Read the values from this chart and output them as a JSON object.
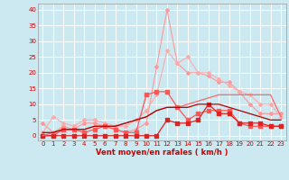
{
  "xlabel": "Vent moyen/en rafales ( km/h )",
  "bg_color": "#cce8f0",
  "grid_color": "#ffffff",
  "x_ticks": [
    0,
    1,
    2,
    3,
    4,
    5,
    6,
    7,
    8,
    9,
    10,
    11,
    12,
    13,
    14,
    15,
    16,
    17,
    18,
    19,
    20,
    21,
    22,
    23
  ],
  "y_ticks": [
    0,
    5,
    10,
    15,
    20,
    25,
    30,
    35,
    40
  ],
  "ylim": [
    -1.5,
    42
  ],
  "xlim": [
    -0.5,
    23.5
  ],
  "series": [
    {
      "color": "#ff9999",
      "linewidth": 0.8,
      "marker": "D",
      "markersize": 2.0,
      "x": [
        0,
        1,
        2,
        3,
        4,
        5,
        6,
        7,
        8,
        9,
        10,
        11,
        12,
        13,
        14,
        15,
        16,
        17,
        18,
        19,
        20,
        21,
        22,
        23
      ],
      "y": [
        4,
        1,
        3,
        2,
        4,
        4,
        3,
        2,
        1,
        2,
        4,
        22,
        40,
        23,
        20,
        20,
        19,
        17,
        17,
        14,
        10,
        7,
        7,
        7
      ]
    },
    {
      "color": "#ffaaaa",
      "linewidth": 0.8,
      "marker": "D",
      "markersize": 2.0,
      "x": [
        0,
        1,
        2,
        3,
        4,
        5,
        6,
        7,
        8,
        9,
        10,
        11,
        12,
        13,
        14,
        15,
        16,
        17,
        18,
        19,
        20,
        21,
        22,
        23
      ],
      "y": [
        1,
        6,
        4,
        3,
        5,
        5,
        4,
        3,
        3,
        5,
        8,
        13,
        27,
        23,
        25,
        20,
        20,
        18,
        16,
        14,
        13,
        10,
        10,
        6
      ]
    },
    {
      "color": "#ff5555",
      "linewidth": 0.9,
      "marker": "s",
      "markersize": 2.2,
      "x": [
        0,
        1,
        2,
        3,
        4,
        5,
        6,
        7,
        8,
        9,
        10,
        11,
        12,
        13,
        14,
        15,
        16,
        17,
        18,
        19,
        20,
        21,
        22,
        23
      ],
      "y": [
        0,
        0,
        2,
        2,
        1,
        2,
        3,
        2,
        1,
        1,
        13,
        14,
        14,
        9,
        5,
        7,
        8,
        8,
        8,
        4,
        3,
        3,
        3,
        3
      ]
    },
    {
      "color": "#dd2222",
      "linewidth": 0.9,
      "marker": "s",
      "markersize": 2.2,
      "x": [
        0,
        1,
        2,
        3,
        4,
        5,
        6,
        7,
        8,
        9,
        10,
        11,
        12,
        13,
        14,
        15,
        16,
        17,
        18,
        19,
        20,
        21,
        22,
        23
      ],
      "y": [
        0,
        0,
        0,
        0,
        0,
        0,
        0,
        0,
        0,
        0,
        0,
        0,
        5,
        4,
        4,
        5,
        10,
        7,
        7,
        4,
        4,
        4,
        3,
        3
      ]
    },
    {
      "color": "#ff6666",
      "linewidth": 0.9,
      "marker": null,
      "markersize": 0,
      "x": [
        0,
        1,
        2,
        3,
        4,
        5,
        6,
        7,
        8,
        9,
        10,
        11,
        12,
        13,
        14,
        15,
        16,
        17,
        18,
        19,
        20,
        21,
        22,
        23
      ],
      "y": [
        0,
        1,
        2,
        2,
        2,
        3,
        3,
        3,
        4,
        5,
        6,
        8,
        9,
        9,
        10,
        11,
        12,
        13,
        13,
        13,
        13,
        13,
        13,
        6
      ]
    },
    {
      "color": "#aa0000",
      "linewidth": 0.9,
      "marker": null,
      "markersize": 0,
      "x": [
        0,
        1,
        2,
        3,
        4,
        5,
        6,
        7,
        8,
        9,
        10,
        11,
        12,
        13,
        14,
        15,
        16,
        17,
        18,
        19,
        20,
        21,
        22,
        23
      ],
      "y": [
        1,
        1,
        2,
        2,
        2,
        3,
        3,
        3,
        4,
        5,
        6,
        8,
        9,
        9,
        9,
        10,
        10,
        10,
        9,
        8,
        7,
        6,
        5,
        5
      ]
    }
  ],
  "tick_fontsize": 5.0,
  "label_fontsize": 6.0
}
